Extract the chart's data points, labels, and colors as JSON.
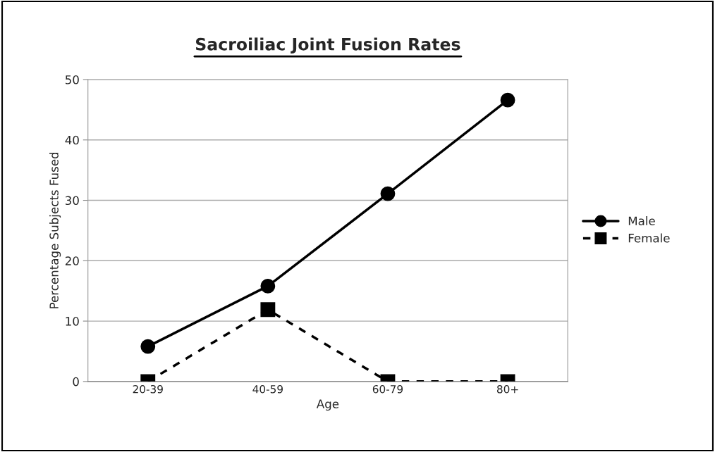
{
  "chart_data": {
    "type": "line",
    "title": "Sacroiliac Joint Fusion Rates",
    "xlabel": "Age",
    "ylabel": "Percentage Subjects Fused",
    "categories": [
      "20-39",
      "40-59",
      "60-79",
      "80+"
    ],
    "series": [
      {
        "name": "Male",
        "color": "#000000",
        "values": [
          5.8,
          15.8,
          31.1,
          46.6
        ],
        "marker": "circle",
        "line_style": "solid"
      },
      {
        "name": "Female",
        "color": "#000000",
        "values": [
          0,
          11.9,
          0,
          0
        ],
        "marker": "square",
        "line_style": "dashed"
      }
    ],
    "ylim": [
      0,
      50
    ],
    "yticks": [
      0,
      10,
      20,
      30,
      40,
      50
    ],
    "grid": "y",
    "legend": "right"
  }
}
